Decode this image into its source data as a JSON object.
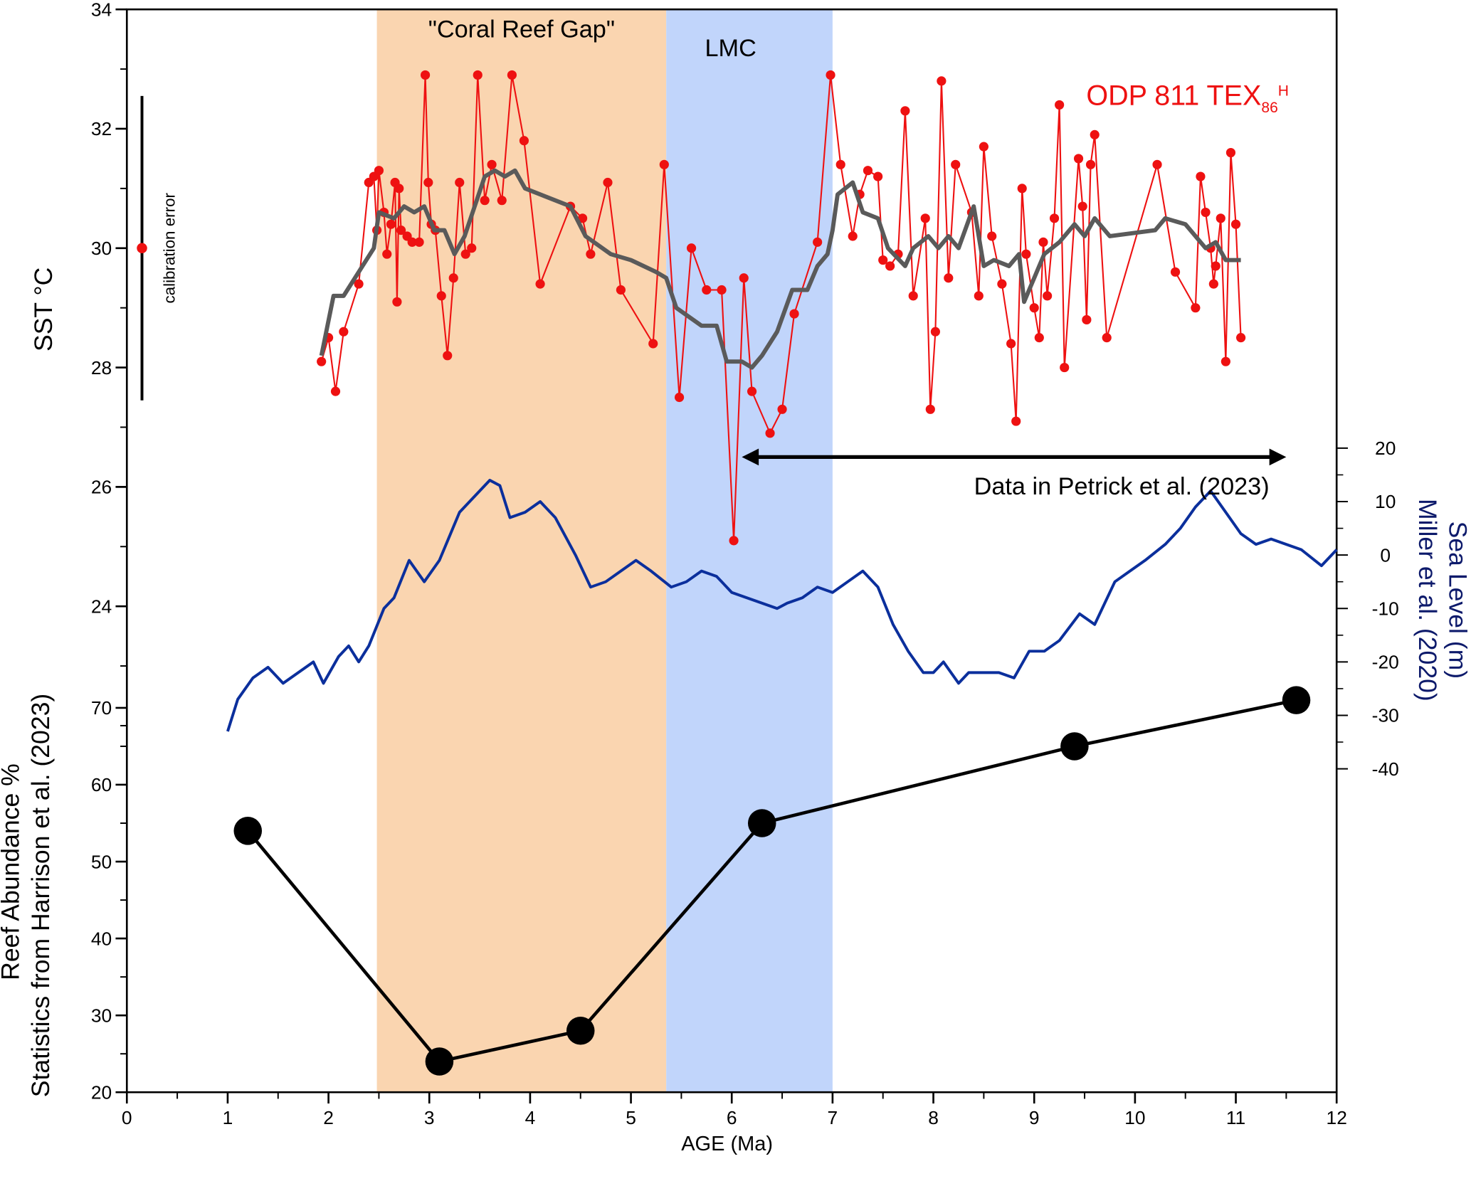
{
  "chart_data": {
    "type": "line",
    "xlabel": "AGE (Ma)",
    "xlim": [
      0,
      12
    ],
    "xticks": [
      0,
      1,
      2,
      3,
      4,
      5,
      6,
      7,
      8,
      9,
      10,
      11,
      12
    ],
    "xticks_minor": [
      0.5,
      1.5,
      2.5,
      3.5,
      4.5,
      5.5,
      6.5,
      7.5,
      8.5,
      9.5,
      10.5,
      11.5
    ],
    "ylabel": "SST °C",
    "ylim": [
      22,
      34
    ],
    "yticks": [
      24,
      26,
      28,
      30,
      32,
      34
    ],
    "yticks_minor": [
      22,
      23,
      25,
      27,
      29,
      31,
      33
    ],
    "y2label": [
      "Sea Level (m)",
      "Miller et al. (2020)"
    ],
    "y2lim": [
      -40,
      20
    ],
    "y2ticks": [
      -40,
      -30,
      -20,
      -10,
      0,
      10,
      20
    ],
    "y2ticks_minor": [
      -35,
      -25,
      -15,
      -5,
      5,
      15
    ],
    "y2color": "#0d1a6b",
    "y3label": [
      "Reef Abundance %",
      "Statistics from Harrison et al. (2023)"
    ],
    "y3lim": [
      20,
      70
    ],
    "y3ticks": [
      20,
      30,
      40,
      50,
      60,
      70
    ],
    "y3ticks_minor": [
      25,
      35,
      45,
      55,
      65
    ],
    "spans": [
      {
        "label": "\"Coral Reef Gap\"",
        "xlim": [
          2.48,
          5.35
        ],
        "color": "#fad5b0"
      },
      {
        "label": "LMC",
        "xlim": [
          5.35,
          7.0
        ],
        "color": "#c1d5fb"
      }
    ],
    "calibration_error": {
      "x": 0.15,
      "value": 30,
      "error": 2.55,
      "label": "calibration error",
      "color": "#ee1111"
    },
    "arrow": {
      "label": "Data in Petrick et al. (2023)",
      "xlim": [
        6.1,
        11.5
      ],
      "y": 26.5
    },
    "series": [
      {
        "name": "ODP 811 TEX",
        "name_sub": "86",
        "name_sup": "H",
        "color": "#ee1111",
        "axis": "y",
        "markers": true,
        "x": [
          1.93,
          2.0,
          2.07,
          2.15,
          2.3,
          2.4,
          2.45,
          2.48,
          2.5,
          2.55,
          2.58,
          2.62,
          2.66,
          2.68,
          2.7,
          2.72,
          2.78,
          2.83,
          2.9,
          2.96,
          2.99,
          3.02,
          3.06,
          3.12,
          3.18,
          3.24,
          3.3,
          3.36,
          3.42,
          3.48,
          3.55,
          3.62,
          3.72,
          3.82,
          3.94,
          4.1,
          4.4,
          4.52,
          4.6,
          4.77,
          4.9,
          5.22,
          5.33,
          5.48,
          5.6,
          5.75,
          5.9,
          6.02,
          6.12,
          6.2,
          6.38,
          6.5,
          6.62,
          6.85,
          6.98,
          7.08,
          7.2,
          7.27,
          7.35,
          7.45,
          7.5,
          7.57,
          7.65,
          7.72,
          7.8,
          7.92,
          7.97,
          8.02,
          8.08,
          8.15,
          8.22,
          8.38,
          8.45,
          8.5,
          8.58,
          8.68,
          8.77,
          8.82,
          8.88,
          8.92,
          9.0,
          9.05,
          9.09,
          9.13,
          9.2,
          9.25,
          9.3,
          9.44,
          9.48,
          9.52,
          9.56,
          9.6,
          9.72,
          10.22,
          10.4,
          10.6,
          10.65,
          10.7,
          10.75,
          10.78,
          10.8,
          10.85,
          10.9,
          10.95,
          11.0,
          11.05
        ],
        "values": [
          28.1,
          28.5,
          27.6,
          28.6,
          29.4,
          31.1,
          31.2,
          30.3,
          31.3,
          30.6,
          29.9,
          30.4,
          31.1,
          29.1,
          31.0,
          30.3,
          30.2,
          30.1,
          30.1,
          32.9,
          31.1,
          30.4,
          30.3,
          29.2,
          28.2,
          29.5,
          31.1,
          29.9,
          30.0,
          32.9,
          30.8,
          31.4,
          30.8,
          32.9,
          31.8,
          29.4,
          30.7,
          30.5,
          29.9,
          31.1,
          29.3,
          28.4,
          31.4,
          27.5,
          30.0,
          29.3,
          29.3,
          25.1,
          29.5,
          27.6,
          26.9,
          27.3,
          28.9,
          30.1,
          32.9,
          31.4,
          30.2,
          30.9,
          31.3,
          31.2,
          29.8,
          29.7,
          29.9,
          32.3,
          29.2,
          30.5,
          27.3,
          28.6,
          32.8,
          29.5,
          31.4,
          30.6,
          29.2,
          31.7,
          30.2,
          29.4,
          28.4,
          27.1,
          31.0,
          29.9,
          29.0,
          28.5,
          30.1,
          29.2,
          30.5,
          32.4,
          28.0,
          31.5,
          30.7,
          28.8,
          31.4,
          31.9,
          28.5,
          31.4,
          29.6,
          29.0,
          31.2,
          30.6,
          30.0,
          29.4,
          29.7,
          30.5,
          28.1,
          31.6,
          30.4,
          28.5
        ]
      },
      {
        "color": "#5a5a5a",
        "axis": "y",
        "markers": false,
        "x": [
          1.93,
          2.05,
          2.15,
          2.3,
          2.45,
          2.5,
          2.65,
          2.75,
          2.85,
          2.95,
          3.05,
          3.15,
          3.25,
          3.35,
          3.45,
          3.55,
          3.65,
          3.75,
          3.85,
          3.95,
          4.1,
          4.4,
          4.55,
          4.8,
          5.0,
          5.25,
          5.35,
          5.45,
          5.7,
          5.85,
          5.95,
          6.1,
          6.2,
          6.3,
          6.45,
          6.6,
          6.75,
          6.85,
          6.95,
          7.0,
          7.05,
          7.2,
          7.3,
          7.45,
          7.55,
          7.72,
          7.8,
          7.95,
          8.05,
          8.15,
          8.25,
          8.4,
          8.5,
          8.6,
          8.75,
          8.85,
          8.9,
          9.0,
          9.1,
          9.25,
          9.4,
          9.5,
          9.6,
          9.75,
          10.2,
          10.3,
          10.5,
          10.7,
          10.8,
          10.9,
          11.05
        ],
        "values": [
          28.2,
          29.2,
          29.2,
          29.6,
          30.0,
          30.6,
          30.5,
          30.7,
          30.6,
          30.7,
          30.3,
          30.3,
          29.9,
          30.2,
          30.7,
          31.2,
          31.3,
          31.2,
          31.3,
          31.0,
          30.9,
          30.7,
          30.2,
          29.9,
          29.8,
          29.6,
          29.5,
          29.0,
          28.7,
          28.7,
          28.1,
          28.1,
          28.0,
          28.2,
          28.6,
          29.3,
          29.3,
          29.7,
          29.9,
          30.3,
          30.9,
          31.1,
          30.6,
          30.5,
          30.0,
          29.7,
          30.0,
          30.2,
          30.0,
          30.2,
          30.0,
          30.7,
          29.7,
          29.8,
          29.7,
          29.9,
          29.1,
          29.5,
          29.9,
          30.1,
          30.4,
          30.2,
          30.5,
          30.2,
          30.3,
          30.5,
          30.4,
          30.0,
          30.1,
          29.8,
          29.8
        ]
      },
      {
        "color": "#0b2f9c",
        "axis": "y2",
        "markers": false,
        "x": [
          1.0,
          1.1,
          1.25,
          1.4,
          1.55,
          1.7,
          1.85,
          1.95,
          2.1,
          2.2,
          2.3,
          2.4,
          2.55,
          2.65,
          2.8,
          2.95,
          3.1,
          3.3,
          3.45,
          3.6,
          3.7,
          3.8,
          3.95,
          4.1,
          4.25,
          4.45,
          4.6,
          4.75,
          4.9,
          5.05,
          5.2,
          5.4,
          5.55,
          5.7,
          5.85,
          6.0,
          6.15,
          6.3,
          6.45,
          6.55,
          6.7,
          6.85,
          7.0,
          7.15,
          7.3,
          7.45,
          7.6,
          7.75,
          7.9,
          8.0,
          8.1,
          8.25,
          8.35,
          8.5,
          8.65,
          8.8,
          8.95,
          9.1,
          9.25,
          9.45,
          9.6,
          9.8,
          9.95,
          10.1,
          10.3,
          10.45,
          10.6,
          10.75,
          10.9,
          11.05,
          11.2,
          11.35,
          11.5,
          11.65,
          11.85,
          12.0
        ],
        "values": [
          -33,
          -27,
          -23,
          -21,
          -24,
          -22,
          -20,
          -24,
          -19,
          -17,
          -20,
          -17,
          -10,
          -8,
          -1,
          -5,
          -1,
          8,
          11,
          14,
          13,
          7,
          8,
          10,
          7,
          0,
          -6,
          -5,
          -3,
          -1,
          -3,
          -6,
          -5,
          -3,
          -4,
          -7,
          -8,
          -9,
          -10,
          -9,
          -8,
          -6,
          -7,
          -5,
          -3,
          -6,
          -13,
          -18,
          -22,
          -22,
          -20,
          -24,
          -22,
          -22,
          -22,
          -23,
          -18,
          -18,
          -16,
          -11,
          -13,
          -5,
          -3,
          -1,
          2,
          5,
          9,
          12,
          8,
          4,
          2,
          3,
          2,
          1,
          -2,
          1
        ]
      },
      {
        "color": "#000000",
        "axis": "y3",
        "markers": true,
        "big_markers": true,
        "x": [
          1.2,
          3.1,
          4.5,
          6.3,
          9.4,
          11.6
        ],
        "values": [
          54,
          24,
          28,
          55,
          65,
          71
        ]
      }
    ]
  }
}
